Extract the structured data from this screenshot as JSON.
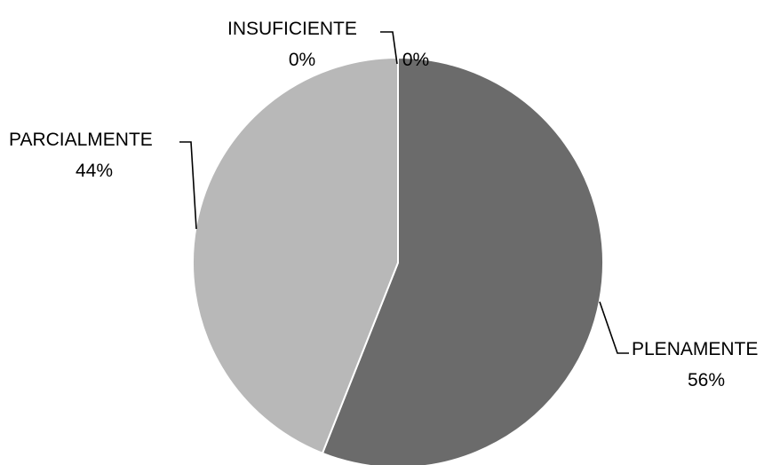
{
  "chart_data": {
    "type": "pie",
    "title": "",
    "slices": [
      {
        "label": "PLENAMENTE",
        "value": 56,
        "display": "56%",
        "color": "#6b6b6b"
      },
      {
        "label": "PARCIALMENTE",
        "value": 44,
        "display": "44%",
        "color": "#b8b8b8"
      },
      {
        "label": "INSUFICIENTE",
        "value": 0,
        "display": "0%",
        "color": "#8c8c8c"
      }
    ],
    "extra_labels": [
      {
        "text": "0%"
      }
    ],
    "legend": "none"
  }
}
